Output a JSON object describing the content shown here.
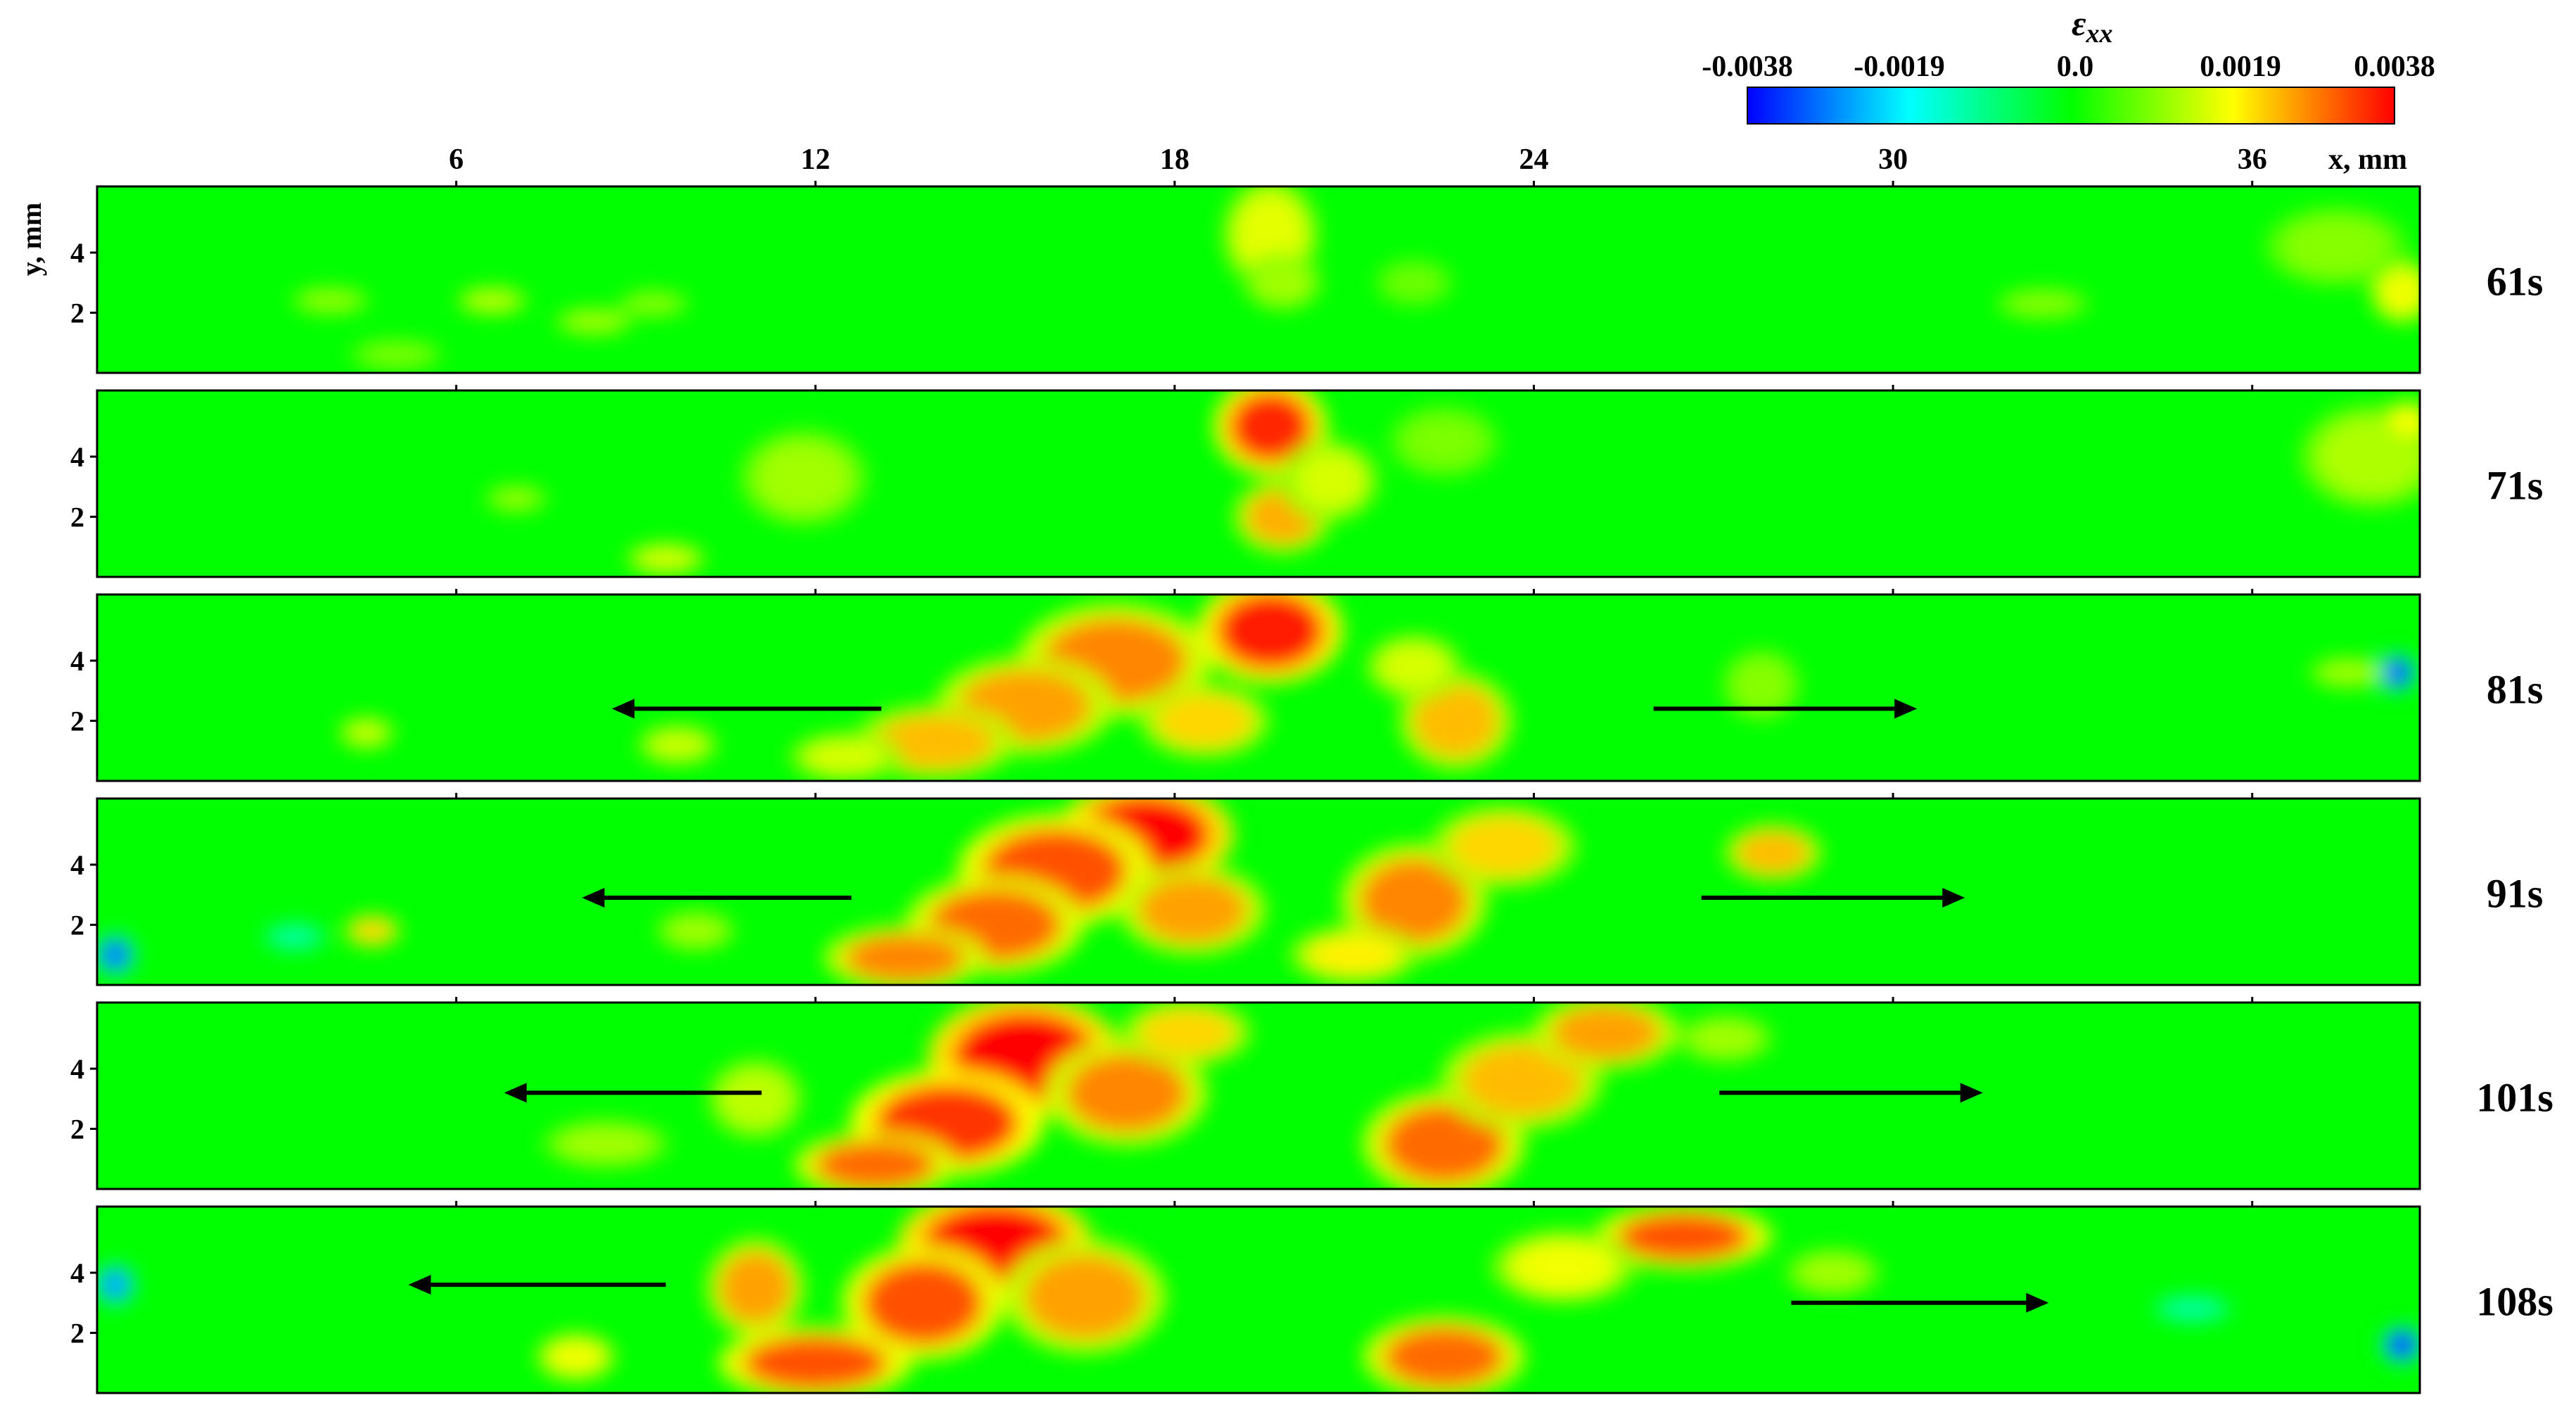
{
  "chart_data": {
    "type": "heatmap",
    "title": "",
    "colorbar": {
      "label": "ε",
      "label_subscript": "xx",
      "ticks": [
        -0.0038,
        -0.0019,
        0.0,
        0.0019,
        0.0038
      ],
      "tick_labels": [
        "-0.0038",
        "-0.0019",
        "0.0",
        "0.0019",
        "0.0038"
      ],
      "colormap": [
        "#0000ff",
        "#00ffff",
        "#00ff00",
        "#ffff00",
        "#ff0000"
      ],
      "range": [
        -0.0038,
        0.0038
      ]
    },
    "xlabel": "x, mm",
    "ylabel": "y, mm",
    "xlim": [
      0,
      38.8
    ],
    "ylim": [
      0,
      6.2
    ],
    "xticks": [
      6,
      12,
      18,
      24,
      30,
      36
    ],
    "xtick_labels": [
      "6",
      "12",
      "18",
      "24",
      "30",
      "36"
    ],
    "yticks": [
      2,
      4
    ],
    "ytick_labels": [
      "2",
      "4"
    ],
    "panels": [
      {
        "time_label": "61s",
        "hotspots": [
          {
            "x": 19.6,
            "y": 4.6,
            "rx": 0.6,
            "ry": 1.4,
            "value": 0.0017
          },
          {
            "x": 19.8,
            "y": 3.0,
            "rx": 0.5,
            "ry": 0.7,
            "value": 0.0012
          },
          {
            "x": 38.5,
            "y": 2.7,
            "rx": 0.4,
            "ry": 0.8,
            "value": 0.0018
          },
          {
            "x": 37.4,
            "y": 4.2,
            "rx": 0.9,
            "ry": 1.0,
            "value": 0.001
          },
          {
            "x": 6.6,
            "y": 2.4,
            "rx": 0.45,
            "ry": 0.35,
            "value": 0.0014
          },
          {
            "x": 3.9,
            "y": 2.4,
            "rx": 0.5,
            "ry": 0.35,
            "value": 0.0011
          },
          {
            "x": 8.3,
            "y": 1.7,
            "rx": 0.5,
            "ry": 0.35,
            "value": 0.0012
          },
          {
            "x": 9.3,
            "y": 2.3,
            "rx": 0.45,
            "ry": 0.35,
            "value": 0.001
          },
          {
            "x": 5.0,
            "y": 0.6,
            "rx": 0.6,
            "ry": 0.4,
            "value": 0.0009
          },
          {
            "x": 22.0,
            "y": 3.0,
            "rx": 0.5,
            "ry": 0.6,
            "value": 0.0008
          },
          {
            "x": 32.5,
            "y": 2.3,
            "rx": 0.6,
            "ry": 0.4,
            "value": 0.001
          }
        ],
        "arrows": []
      },
      {
        "time_label": "71s",
        "hotspots": [
          {
            "x": 19.6,
            "y": 5.0,
            "rx": 0.7,
            "ry": 1.2,
            "value": 0.0035
          },
          {
            "x": 19.8,
            "y": 2.0,
            "rx": 0.6,
            "ry": 0.9,
            "value": 0.0025
          },
          {
            "x": 20.6,
            "y": 3.2,
            "rx": 0.6,
            "ry": 1.0,
            "value": 0.0016
          },
          {
            "x": 11.8,
            "y": 3.3,
            "rx": 0.8,
            "ry": 1.2,
            "value": 0.0012
          },
          {
            "x": 9.5,
            "y": 0.6,
            "rx": 0.5,
            "ry": 0.4,
            "value": 0.0016
          },
          {
            "x": 38.0,
            "y": 4.0,
            "rx": 0.9,
            "ry": 1.3,
            "value": 0.0013
          },
          {
            "x": 38.6,
            "y": 5.2,
            "rx": 0.3,
            "ry": 0.5,
            "value": 0.0019
          },
          {
            "x": 22.5,
            "y": 4.5,
            "rx": 0.7,
            "ry": 0.9,
            "value": 0.0009
          },
          {
            "x": 7.0,
            "y": 2.6,
            "rx": 0.4,
            "ry": 0.35,
            "value": 0.0011
          }
        ],
        "arrows": []
      },
      {
        "time_label": "81s",
        "hotspots": [
          {
            "x": 19.6,
            "y": 5.0,
            "rx": 0.9,
            "ry": 1.3,
            "value": 0.0036
          },
          {
            "x": 17.0,
            "y": 4.0,
            "rx": 1.2,
            "ry": 1.4,
            "value": 0.0028
          },
          {
            "x": 15.5,
            "y": 2.5,
            "rx": 1.1,
            "ry": 1.2,
            "value": 0.0026
          },
          {
            "x": 14.0,
            "y": 1.3,
            "rx": 1.0,
            "ry": 0.9,
            "value": 0.0024
          },
          {
            "x": 18.5,
            "y": 2.0,
            "rx": 0.8,
            "ry": 0.9,
            "value": 0.0022
          },
          {
            "x": 22.7,
            "y": 2.0,
            "rx": 0.7,
            "ry": 1.2,
            "value": 0.0024
          },
          {
            "x": 22.0,
            "y": 3.8,
            "rx": 0.6,
            "ry": 0.8,
            "value": 0.0016
          },
          {
            "x": 12.5,
            "y": 0.8,
            "rx": 0.7,
            "ry": 0.6,
            "value": 0.0016
          },
          {
            "x": 9.7,
            "y": 1.2,
            "rx": 0.5,
            "ry": 0.5,
            "value": 0.0015
          },
          {
            "x": 27.8,
            "y": 3.2,
            "rx": 0.5,
            "ry": 0.9,
            "value": 0.001
          },
          {
            "x": 4.5,
            "y": 1.6,
            "rx": 0.35,
            "ry": 0.4,
            "value": 0.0015
          },
          {
            "x": 38.4,
            "y": 3.6,
            "rx": 0.25,
            "ry": 0.45,
            "value": -0.0036
          },
          {
            "x": 37.6,
            "y": 3.6,
            "rx": 0.5,
            "ry": 0.4,
            "value": 0.0012
          }
        ],
        "arrows": [
          {
            "x_start": 13.1,
            "x_end": 8.6,
            "y": 2.4
          },
          {
            "x_start": 26.0,
            "x_end": 30.4,
            "y": 2.4
          }
        ]
      },
      {
        "time_label": "91s",
        "hotspots": [
          {
            "x": 17.5,
            "y": 5.0,
            "rx": 1.1,
            "ry": 1.3,
            "value": 0.0038
          },
          {
            "x": 16.0,
            "y": 3.8,
            "rx": 1.2,
            "ry": 1.4,
            "value": 0.0032
          },
          {
            "x": 15.0,
            "y": 2.0,
            "rx": 1.1,
            "ry": 1.2,
            "value": 0.003
          },
          {
            "x": 13.5,
            "y": 0.9,
            "rx": 1.0,
            "ry": 0.8,
            "value": 0.0028
          },
          {
            "x": 18.3,
            "y": 2.5,
            "rx": 0.9,
            "ry": 1.1,
            "value": 0.0026
          },
          {
            "x": 22.0,
            "y": 2.8,
            "rx": 0.9,
            "ry": 1.4,
            "value": 0.0028
          },
          {
            "x": 23.5,
            "y": 4.6,
            "rx": 0.9,
            "ry": 1.0,
            "value": 0.0022
          },
          {
            "x": 21.0,
            "y": 1.0,
            "rx": 0.8,
            "ry": 0.7,
            "value": 0.002
          },
          {
            "x": 28.0,
            "y": 4.4,
            "rx": 0.6,
            "ry": 0.7,
            "value": 0.0024
          },
          {
            "x": 10.0,
            "y": 1.8,
            "rx": 0.5,
            "ry": 0.5,
            "value": 0.0012
          },
          {
            "x": 4.6,
            "y": 1.8,
            "rx": 0.35,
            "ry": 0.4,
            "value": 0.0022
          },
          {
            "x": 0.3,
            "y": 1.0,
            "rx": 0.25,
            "ry": 0.5,
            "value": -0.003
          },
          {
            "x": 3.3,
            "y": 1.6,
            "rx": 0.4,
            "ry": 0.35,
            "value": -0.0012
          }
        ],
        "arrows": [
          {
            "x_start": 12.6,
            "x_end": 8.1,
            "y": 2.9
          },
          {
            "x_start": 26.8,
            "x_end": 31.2,
            "y": 2.9
          }
        ]
      },
      {
        "time_label": "101s",
        "hotspots": [
          {
            "x": 15.5,
            "y": 4.4,
            "rx": 1.2,
            "ry": 1.5,
            "value": 0.0038
          },
          {
            "x": 14.2,
            "y": 2.2,
            "rx": 1.2,
            "ry": 1.3,
            "value": 0.0034
          },
          {
            "x": 13.0,
            "y": 0.8,
            "rx": 1.0,
            "ry": 0.8,
            "value": 0.003
          },
          {
            "x": 17.2,
            "y": 3.2,
            "rx": 1.0,
            "ry": 1.3,
            "value": 0.0028
          },
          {
            "x": 18.2,
            "y": 5.2,
            "rx": 0.8,
            "ry": 0.8,
            "value": 0.0022
          },
          {
            "x": 22.5,
            "y": 1.5,
            "rx": 1.0,
            "ry": 1.3,
            "value": 0.003
          },
          {
            "x": 23.8,
            "y": 3.6,
            "rx": 1.0,
            "ry": 1.2,
            "value": 0.0024
          },
          {
            "x": 25.2,
            "y": 5.2,
            "rx": 0.9,
            "ry": 0.9,
            "value": 0.0026
          },
          {
            "x": 11.0,
            "y": 3.0,
            "rx": 0.6,
            "ry": 1.0,
            "value": 0.0014
          },
          {
            "x": 8.5,
            "y": 1.5,
            "rx": 0.8,
            "ry": 0.6,
            "value": 0.0012
          },
          {
            "x": 27.2,
            "y": 5.0,
            "rx": 0.6,
            "ry": 0.6,
            "value": 0.0012
          }
        ],
        "arrows": [
          {
            "x_start": 11.1,
            "x_end": 6.8,
            "y": 3.2
          },
          {
            "x_start": 27.1,
            "x_end": 31.5,
            "y": 3.2
          }
        ]
      },
      {
        "time_label": "108s",
        "hotspots": [
          {
            "x": 15.0,
            "y": 5.0,
            "rx": 1.2,
            "ry": 1.3,
            "value": 0.0038
          },
          {
            "x": 13.8,
            "y": 3.0,
            "rx": 1.0,
            "ry": 1.4,
            "value": 0.0032
          },
          {
            "x": 12.0,
            "y": 1.0,
            "rx": 1.2,
            "ry": 0.9,
            "value": 0.0032
          },
          {
            "x": 11.0,
            "y": 3.5,
            "rx": 0.6,
            "ry": 1.2,
            "value": 0.0026
          },
          {
            "x": 16.5,
            "y": 3.2,
            "rx": 1.0,
            "ry": 1.4,
            "value": 0.0026
          },
          {
            "x": 22.5,
            "y": 1.2,
            "rx": 1.0,
            "ry": 1.0,
            "value": 0.003
          },
          {
            "x": 26.5,
            "y": 5.2,
            "rx": 1.1,
            "ry": 0.8,
            "value": 0.0032
          },
          {
            "x": 24.5,
            "y": 4.2,
            "rx": 0.9,
            "ry": 0.9,
            "value": 0.0018
          },
          {
            "x": 8.0,
            "y": 1.2,
            "rx": 0.5,
            "ry": 0.6,
            "value": 0.0018
          },
          {
            "x": 29.0,
            "y": 4.0,
            "rx": 0.6,
            "ry": 0.6,
            "value": 0.0012
          },
          {
            "x": 0.3,
            "y": 3.6,
            "rx": 0.25,
            "ry": 0.5,
            "value": -0.0026
          },
          {
            "x": 38.5,
            "y": 1.6,
            "rx": 0.25,
            "ry": 0.45,
            "value": -0.0036
          },
          {
            "x": 35.0,
            "y": 2.8,
            "rx": 0.5,
            "ry": 0.35,
            "value": -0.0012
          }
        ],
        "arrows": [
          {
            "x_start": 9.5,
            "x_end": 5.2,
            "y": 3.6
          },
          {
            "x_start": 28.3,
            "x_end": 32.6,
            "y": 3.0
          }
        ]
      }
    ]
  }
}
